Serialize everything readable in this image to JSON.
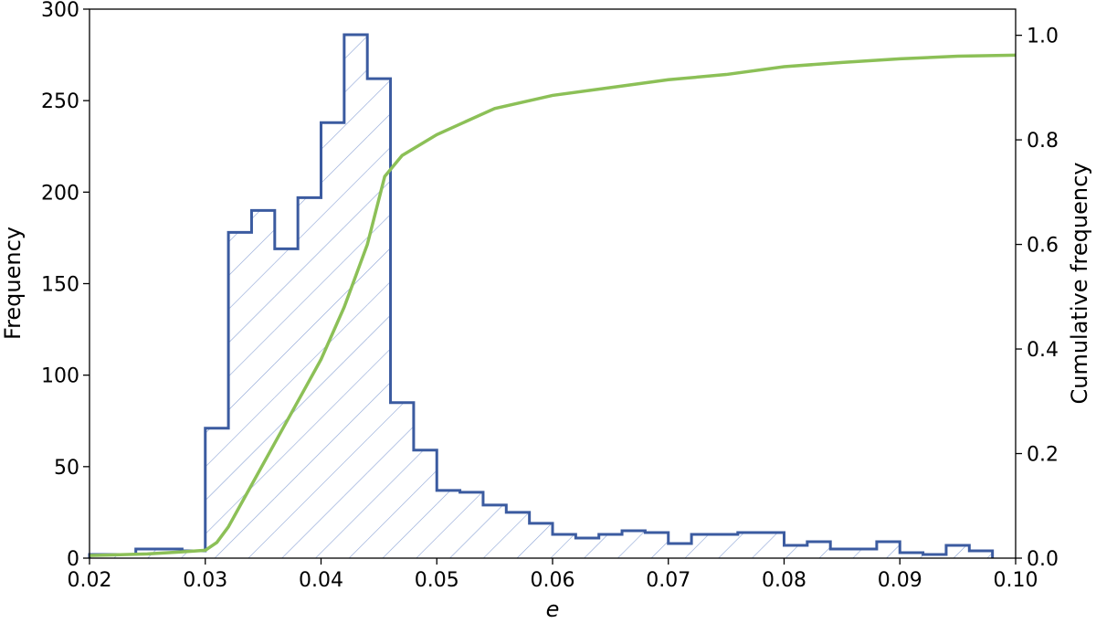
{
  "chart_data": {
    "type": "bar",
    "xlabel": "e",
    "ylabel": "Frequency",
    "y2label": "Cumulative frequency",
    "xlim": [
      0.02,
      0.1
    ],
    "ylim": [
      0,
      300
    ],
    "y2lim": [
      0.0,
      1.05
    ],
    "xticks": [
      "0.02",
      "0.03",
      "0.04",
      "0.05",
      "0.06",
      "0.07",
      "0.08",
      "0.09",
      "0.10"
    ],
    "xtick_values": [
      0.02,
      0.03,
      0.04,
      0.05,
      0.06,
      0.07,
      0.08,
      0.09,
      0.1
    ],
    "yticks": [
      "0",
      "50",
      "100",
      "150",
      "200",
      "250",
      "300"
    ],
    "ytick_values": [
      0,
      50,
      100,
      150,
      200,
      250,
      300
    ],
    "y2ticks": [
      "0.0",
      "0.2",
      "0.4",
      "0.6",
      "0.8",
      "1.0"
    ],
    "y2tick_values": [
      0.0,
      0.2,
      0.4,
      0.6,
      0.8,
      1.0
    ],
    "grid": false,
    "colors": {
      "histogram": "#3b5ba0",
      "hatch": "#8aa2d4",
      "cumulative": "#8cc057"
    },
    "histogram": {
      "bin_edges": [
        0.02,
        0.022,
        0.024,
        0.026,
        0.028,
        0.03,
        0.032,
        0.034,
        0.036,
        0.038,
        0.04,
        0.042,
        0.044,
        0.046,
        0.048,
        0.05,
        0.052,
        0.054,
        0.056,
        0.058,
        0.06,
        0.062,
        0.064,
        0.066,
        0.068,
        0.07,
        0.072,
        0.074,
        0.076,
        0.078,
        0.08,
        0.082,
        0.084,
        0.086,
        0.088,
        0.09,
        0.092,
        0.094,
        0.096,
        0.098
      ],
      "values": [
        2,
        2,
        5,
        5,
        4,
        71,
        178,
        190,
        169,
        197,
        238,
        286,
        262,
        85,
        59,
        37,
        36,
        29,
        25,
        19,
        13,
        11,
        13,
        15,
        14,
        8,
        13,
        13,
        14,
        14,
        7,
        9,
        5,
        5,
        9,
        3,
        2,
        7,
        4
      ]
    },
    "cumulative": {
      "x": [
        0.02,
        0.025,
        0.028,
        0.03,
        0.031,
        0.032,
        0.033,
        0.034,
        0.036,
        0.038,
        0.04,
        0.042,
        0.044,
        0.0455,
        0.047,
        0.05,
        0.055,
        0.06,
        0.065,
        0.07,
        0.075,
        0.08,
        0.085,
        0.09,
        0.095,
        0.1
      ],
      "y": [
        0.005,
        0.008,
        0.012,
        0.015,
        0.03,
        0.06,
        0.1,
        0.14,
        0.22,
        0.3,
        0.38,
        0.48,
        0.6,
        0.73,
        0.77,
        0.81,
        0.86,
        0.885,
        0.9,
        0.915,
        0.925,
        0.94,
        0.948,
        0.955,
        0.96,
        0.962
      ]
    }
  }
}
